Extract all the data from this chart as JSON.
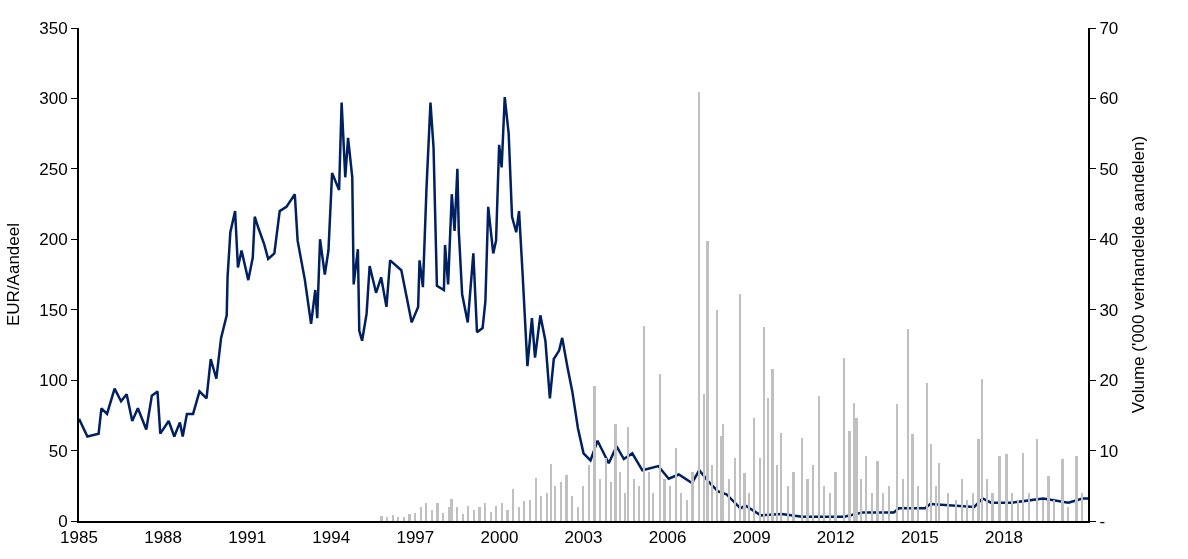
{
  "chart_data": {
    "type": "line",
    "ylabel": "EUR/Aandeel",
    "y2label": "Volume ('000 verhandelde aandelen)",
    "xlim": [
      1985,
      2021
    ],
    "xticks": [
      1985,
      1988,
      1991,
      1994,
      1997,
      2000,
      2003,
      2006,
      2009,
      2012,
      2015,
      2018
    ],
    "ylim": [
      0,
      350
    ],
    "yticks": [
      0,
      50,
      100,
      150,
      200,
      250,
      300,
      350
    ],
    "y2lim": [
      0,
      70
    ],
    "y2ticks": [
      {
        "value": 0,
        "label": "-"
      },
      10,
      20,
      30,
      40,
      50,
      60,
      70
    ],
    "marker": "none",
    "line_style": "solid",
    "series": [
      {
        "type": "bar",
        "axis": "y2",
        "color": "#c0c0c0",
        "x": [
          1995.8,
          1996.0,
          1996.2,
          1996.4,
          1996.6,
          1996.8,
          1997.0,
          1997.2,
          1997.4,
          1997.6,
          1997.8,
          1998.0,
          1998.2,
          1998.3,
          1998.5,
          1998.7,
          1998.9,
          1999.1,
          1999.3,
          1999.5,
          1999.7,
          1999.9,
          2000.1,
          2000.3,
          2000.5,
          2000.7,
          2000.9,
          2001.1,
          2001.3,
          2001.5,
          2001.7,
          2001.85,
          2002.0,
          2002.2,
          2002.4,
          2002.6,
          2002.8,
          2003.0,
          2003.2,
          2003.4,
          2003.6,
          2003.8,
          2004.0,
          2004.15,
          2004.3,
          2004.5,
          2004.6,
          2004.8,
          2005.0,
          2005.18,
          2005.35,
          2005.5,
          2005.74,
          2005.9,
          2006.1,
          2006.3,
          2006.5,
          2006.7,
          2006.9,
          2007.13,
          2007.3,
          2007.43,
          2007.6,
          2007.77,
          2007.9,
          2008.0,
          2008.2,
          2008.4,
          2008.58,
          2008.75,
          2008.9,
          2009.1,
          2009.3,
          2009.44,
          2009.6,
          2009.75,
          2009.9,
          2010.05,
          2010.3,
          2010.5,
          2010.8,
          2011.0,
          2011.2,
          2011.42,
          2011.6,
          2011.8,
          2012.0,
          2012.31,
          2012.5,
          2012.65,
          2012.75,
          2012.9,
          2013.1,
          2013.3,
          2013.5,
          2013.7,
          2013.9,
          2014.2,
          2014.4,
          2014.6,
          2014.75,
          2014.95,
          2015.26,
          2015.4,
          2015.6,
          2015.7,
          2016.0,
          2016.3,
          2016.5,
          2016.7,
          2016.9,
          2017.1,
          2017.24,
          2017.4,
          2017.6,
          2017.85,
          2018.1,
          2018.3,
          2018.5,
          2018.7,
          2018.9,
          2019.2,
          2019.4,
          2019.6,
          2019.8,
          2020.1,
          2020.3,
          2020.6,
          2020.8
        ],
        "values": [
          0.7,
          0.5,
          0.8,
          0.6,
          0.5,
          1.0,
          1.2,
          2.0,
          2.6,
          1.5,
          2.6,
          1.2,
          2.0,
          3.1,
          2.0,
          1.0,
          2.1,
          1.5,
          2.0,
          2.6,
          1.3,
          2.2,
          2.6,
          1.5,
          4.5,
          2.0,
          2.8,
          3.0,
          6.1,
          3.5,
          4.0,
          8.1,
          5.0,
          5.5,
          6.5,
          3.5,
          2.0,
          5.0,
          8.0,
          19.2,
          6.0,
          9.0,
          5.5,
          13.8,
          7.0,
          4.0,
          13.3,
          6.0,
          5.0,
          27.7,
          7.0,
          4.0,
          20.9,
          6.0,
          5.0,
          10.4,
          4.0,
          3.0,
          7.0,
          60.9,
          18.0,
          39.8,
          8.0,
          29.9,
          12.0,
          13.8,
          6.0,
          9.0,
          32.3,
          6.8,
          4.0,
          14.6,
          9.0,
          27.5,
          17.5,
          21.6,
          8.0,
          12.5,
          5.0,
          7.0,
          11.8,
          6.0,
          8.0,
          17.8,
          5.0,
          4.0,
          7.0,
          23.2,
          12.8,
          16.8,
          14.6,
          6.0,
          9.2,
          4.0,
          8.5,
          4.0,
          5.0,
          16.6,
          6.0,
          27.3,
          12.4,
          5.0,
          19.6,
          11.0,
          5.0,
          8.3,
          4.0,
          3.0,
          6.0,
          3.0,
          4.0,
          11.7,
          20.2,
          6.0,
          4.0,
          9.2,
          9.5,
          4.0,
          3.0,
          9.7,
          4.0,
          11.7,
          3.0,
          6.4,
          3.0,
          8.8,
          2.0,
          9.2,
          4.0
        ]
      },
      {
        "color": "#002060",
        "x": [
          1985.0,
          1985.3,
          1985.7,
          1985.8,
          1986.0,
          1986.27,
          1986.5,
          1986.7,
          1986.9,
          1987.1,
          1987.4,
          1987.6,
          1987.8,
          1987.9,
          1988.2,
          1988.4,
          1988.6,
          1988.7,
          1988.85,
          1989.07,
          1989.3,
          1989.55,
          1989.7,
          1989.9,
          1990.07,
          1990.27,
          1990.3,
          1990.4,
          1990.57,
          1990.67,
          1990.8,
          1991.04,
          1991.2,
          1991.27,
          1991.4,
          1991.6,
          1991.75,
          1991.97,
          1992.16,
          1992.4,
          1992.7,
          1992.8,
          1993.06,
          1993.28,
          1993.43,
          1993.5,
          1993.6,
          1993.77,
          1993.9,
          1994.03,
          1994.28,
          1994.37,
          1994.5,
          1994.6,
          1994.75,
          1994.8,
          1994.95,
          1995.0,
          1995.1,
          1995.26,
          1995.37,
          1995.6,
          1995.78,
          1995.97,
          1996.1,
          1996.5,
          1996.87,
          1997.1,
          1997.15,
          1997.27,
          1997.4,
          1997.54,
          1997.65,
          1997.77,
          1998.02,
          1998.06,
          1998.17,
          1998.3,
          1998.4,
          1998.5,
          1998.55,
          1998.67,
          1998.87,
          1999.07,
          1999.2,
          1999.4,
          1999.5,
          1999.6,
          1999.78,
          1999.88,
          1999.99,
          2000.08,
          2000.19,
          2000.33,
          2000.45,
          2000.6,
          2000.7,
          2000.82,
          2001.0,
          2001.16,
          2001.27,
          2001.46,
          2001.64,
          2001.8,
          2001.94,
          2002.13,
          2002.24,
          2002.43,
          2002.6,
          2002.8,
          2003.0,
          2003.25,
          2003.5,
          2003.9,
          2004.18,
          2004.44,
          2004.74,
          2005.1,
          2005.67,
          2006.04,
          2006.4,
          2006.87,
          2007.13,
          2007.46,
          2007.8,
          2008.1,
          2008.6,
          2008.77,
          2009.33,
          2010.07,
          2010.8,
          2012.3,
          2012.95,
          2014.07,
          2014.25,
          2015.19,
          2015.37,
          2016.94,
          2017.24,
          2017.54,
          2018.28,
          2019.4,
          2020.3,
          2020.8,
          2021.0
        ],
        "values": [
          72.5,
          60,
          62,
          80,
          76,
          94,
          85,
          90,
          71,
          80,
          65,
          89,
          92,
          62,
          71,
          60,
          70,
          60,
          76,
          76,
          92,
          87,
          115,
          101,
          130,
          146,
          173,
          205,
          220,
          180,
          192,
          171,
          187,
          216,
          208,
          197,
          186,
          190,
          220,
          223,
          232,
          199,
          171,
          140,
          164,
          144,
          200,
          175,
          192,
          247,
          235,
          297,
          244,
          272,
          244,
          168,
          193,
          135,
          128,
          147,
          181,
          162,
          173,
          152,
          185,
          178,
          141,
          152,
          185,
          166,
          237,
          297,
          265,
          167,
          164,
          196,
          168,
          232,
          206,
          250,
          206,
          161,
          141,
          190,
          134,
          137,
          156,
          223,
          190,
          199,
          267,
          251,
          301,
          275,
          216,
          205,
          220,
          178,
          110,
          144,
          116,
          146,
          128,
          87,
          115,
          121,
          130,
          109,
          92,
          66,
          48,
          43,
          57,
          41,
          53,
          44,
          48,
          36,
          39,
          30,
          33,
          27,
          36,
          28,
          21,
          19,
          9,
          11,
          4,
          5,
          3,
          3,
          6,
          6,
          9,
          9,
          12,
          10,
          16,
          13,
          13,
          16,
          13,
          16,
          16
        ]
      }
    ]
  }
}
